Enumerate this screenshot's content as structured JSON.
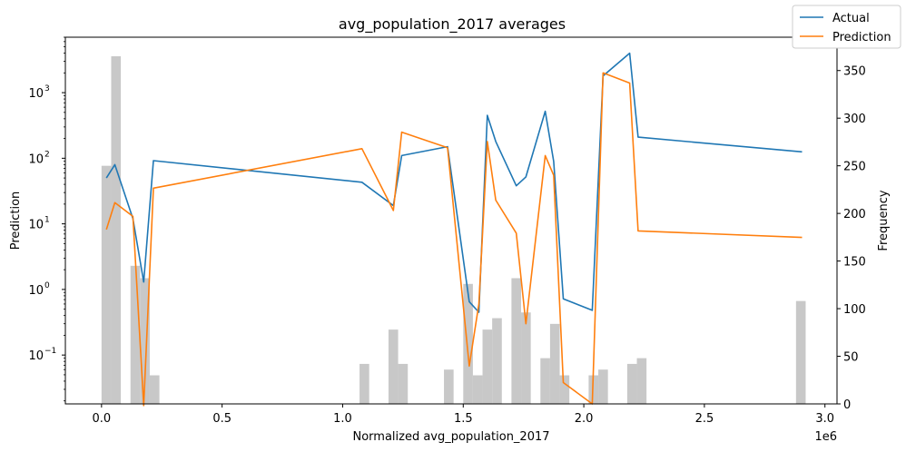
{
  "chart_data": {
    "type": "line",
    "title": "avg_population_2017 averages",
    "xlabel": "Normalized avg_population_2017",
    "x_offset_text": "1e6",
    "ylabel_left": "Prediction",
    "ylabel_right": "Frequency",
    "xlim": [
      -0.15,
      3.05
    ],
    "x_ticks": [
      0.0,
      0.5,
      1.0,
      1.5,
      2.0,
      2.5,
      3.0
    ],
    "x_tick_labels": [
      "0.0",
      "0.5",
      "1.0",
      "1.5",
      "2.0",
      "2.5",
      "3.0"
    ],
    "y_left_scale": "log",
    "y_left_lim": [
      0.018,
      7000
    ],
    "y_left_ticks": [
      0.1,
      1,
      10,
      100,
      1000
    ],
    "y_left_tick_labels": [
      "10",
      "10",
      "10",
      "10",
      "10"
    ],
    "y_left_tick_exponents": [
      "−1",
      "0",
      "1",
      "2",
      "3"
    ],
    "y_right_lim": [
      0,
      385
    ],
    "y_right_ticks": [
      0,
      50,
      100,
      150,
      200,
      250,
      300,
      350
    ],
    "y_right_tick_labels": [
      "0",
      "50",
      "100",
      "150",
      "200",
      "250",
      "300",
      "350"
    ],
    "legend_position": "top-right",
    "series": [
      {
        "name": "Actual",
        "color": "#1f77b4",
        "x": [
          0.02,
          0.055,
          0.13,
          0.175,
          0.215,
          1.08,
          1.21,
          1.245,
          1.435,
          1.525,
          1.565,
          1.6,
          1.635,
          1.72,
          1.76,
          1.84,
          1.875,
          1.915,
          2.035,
          2.08,
          2.19,
          2.225,
          2.905
        ],
        "y": [
          50,
          80,
          12,
          1.3,
          92,
          43,
          19,
          110,
          150,
          0.65,
          0.45,
          450,
          180,
          38,
          52,
          520,
          90,
          0.72,
          0.48,
          1800,
          4000,
          210,
          125
        ]
      },
      {
        "name": "Prediction",
        "color": "#ff7f0e",
        "x": [
          0.02,
          0.055,
          0.13,
          0.175,
          0.215,
          1.08,
          1.21,
          1.245,
          1.435,
          1.525,
          1.565,
          1.6,
          1.635,
          1.72,
          1.76,
          1.84,
          1.875,
          1.915,
          2.035,
          2.08,
          2.19,
          2.225,
          2.905
        ],
        "y": [
          8.2,
          21,
          13,
          0.017,
          35,
          140,
          16,
          250,
          145,
          0.068,
          0.6,
          180,
          23,
          7.2,
          0.3,
          110,
          55,
          0.038,
          0.018,
          2000,
          1400,
          7.8,
          6.2
        ]
      }
    ],
    "histogram": {
      "color": "#c8c8c8",
      "bin_width": 0.04,
      "bins": [
        {
          "x": 0.0,
          "count": 250
        },
        {
          "x": 0.04,
          "count": 365
        },
        {
          "x": 0.12,
          "count": 145
        },
        {
          "x": 0.16,
          "count": 132
        },
        {
          "x": 0.2,
          "count": 30
        },
        {
          "x": 1.07,
          "count": 42
        },
        {
          "x": 1.19,
          "count": 78
        },
        {
          "x": 1.23,
          "count": 42
        },
        {
          "x": 1.42,
          "count": 36
        },
        {
          "x": 1.5,
          "count": 126
        },
        {
          "x": 1.54,
          "count": 30
        },
        {
          "x": 1.58,
          "count": 78
        },
        {
          "x": 1.62,
          "count": 90
        },
        {
          "x": 1.7,
          "count": 132
        },
        {
          "x": 1.74,
          "count": 96
        },
        {
          "x": 1.82,
          "count": 48
        },
        {
          "x": 1.86,
          "count": 84
        },
        {
          "x": 1.9,
          "count": 30
        },
        {
          "x": 2.02,
          "count": 30
        },
        {
          "x": 2.06,
          "count": 36
        },
        {
          "x": 2.18,
          "count": 42
        },
        {
          "x": 2.22,
          "count": 48
        },
        {
          "x": 2.88,
          "count": 108
        }
      ]
    }
  }
}
